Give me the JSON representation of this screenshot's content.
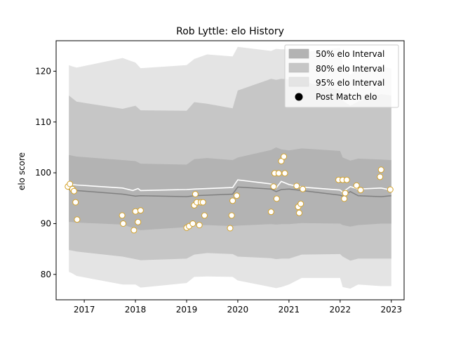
{
  "chart_data": {
    "type": "area",
    "title": "Rob Lyttle: elo History",
    "xlabel": "",
    "ylabel": "elo score",
    "xlim": [
      2016.45,
      2023.25
    ],
    "ylim": [
      75,
      126
    ],
    "x_ticks": [
      2017,
      2018,
      2019,
      2020,
      2021,
      2022,
      2023
    ],
    "y_ticks": [
      80,
      90,
      100,
      110,
      120
    ],
    "grid": false,
    "legend_position": "top-right",
    "legend": {
      "ci50": "50% elo Interval",
      "ci80": "80% elo Interval",
      "ci95": "95% elo Interval",
      "points": "Post Match elo"
    },
    "colors": {
      "ci50": "#b3b3b3",
      "ci80": "#c6c6c6",
      "ci95": "#e4e4e4",
      "mean_line": "#808080",
      "median_line": "#ffffff",
      "point_face": "#ffffff",
      "point_edge": "#d4a22a"
    },
    "bands": {
      "x": [
        2016.7,
        2016.75,
        2016.85,
        2017.75,
        2018.0,
        2018.1,
        2019.0,
        2019.15,
        2019.4,
        2019.9,
        2020.0,
        2020.65,
        2020.75,
        2020.85,
        2021.0,
        2021.25,
        2022.0,
        2022.05,
        2022.2,
        2022.35,
        2022.8,
        2023.0
      ],
      "ci95_lo": [
        80.5,
        80.3,
        79.7,
        78.0,
        78.0,
        77.4,
        78.3,
        79.5,
        79.6,
        79.5,
        78.8,
        77.5,
        77.3,
        77.5,
        78.0,
        79.3,
        79.3,
        77.5,
        77.2,
        78.0,
        77.7,
        77.7
      ],
      "ci80_lo": [
        84.8,
        84.7,
        84.5,
        83.5,
        83.0,
        82.8,
        83.1,
        83.9,
        84.2,
        84.0,
        83.5,
        83.2,
        83.0,
        83.1,
        83.1,
        83.9,
        84.0,
        83.5,
        82.7,
        83.1,
        83.1,
        83.1
      ],
      "ci50_lo": [
        90.3,
        90.3,
        90.2,
        89.8,
        89.0,
        88.7,
        89.3,
        89.7,
        89.7,
        89.5,
        89.6,
        89.9,
        89.8,
        89.9,
        89.9,
        90.1,
        90.0,
        89.7,
        89.4,
        89.7,
        90.0,
        90.0
      ],
      "ci50_hi": [
        103.5,
        103.4,
        103.2,
        102.5,
        102.3,
        101.8,
        101.6,
        102.7,
        102.9,
        102.5,
        103.0,
        104.5,
        105.0,
        104.6,
        104.4,
        104.8,
        104.3,
        103.0,
        102.4,
        102.8,
        102.6,
        102.5
      ],
      "ci80_hi": [
        115.2,
        114.8,
        114.0,
        112.6,
        113.2,
        112.3,
        112.2,
        113.9,
        113.6,
        112.7,
        116.2,
        118.5,
        118.3,
        118.5,
        118.4,
        118.0,
        116.3,
        114.2,
        113.2,
        114.0,
        115.5,
        115.2
      ],
      "ci95_hi": [
        121.2,
        121.0,
        120.7,
        122.6,
        121.7,
        120.6,
        121.2,
        122.4,
        123.3,
        122.9,
        124.8,
        124.0,
        124.4,
        124.3,
        124.3,
        123.7,
        124.6,
        121.4,
        119.3,
        120.5,
        121.0,
        120.5
      ]
    },
    "mean_line": {
      "x": [
        2016.7,
        2016.85,
        2017.75,
        2018.0,
        2018.1,
        2019.0,
        2019.15,
        2019.9,
        2020.0,
        2020.65,
        2020.75,
        2020.85,
        2021.0,
        2021.25,
        2022.0,
        2022.05,
        2022.2,
        2022.35,
        2022.8,
        2023.0
      ],
      "y": [
        96.7,
        96.5,
        95.8,
        95.4,
        95.5,
        95.3,
        95.5,
        95.8,
        97.2,
        96.8,
        96.3,
        96.7,
        96.8,
        96.5,
        95.6,
        95.4,
        96.3,
        95.5,
        95.3,
        95.5
      ]
    },
    "median_line": {
      "x": [
        2016.7,
        2016.85,
        2017.75,
        2017.95,
        2018.05,
        2018.1,
        2019.0,
        2019.15,
        2019.9,
        2020.0,
        2020.65,
        2020.75,
        2020.85,
        2021.0,
        2021.25,
        2022.0,
        2022.05,
        2022.2,
        2022.35,
        2022.8,
        2023.0
      ],
      "y": [
        97.8,
        97.6,
        97.0,
        96.5,
        96.9,
        96.5,
        96.7,
        96.8,
        97.1,
        98.6,
        97.8,
        97.0,
        98.3,
        97.7,
        97.2,
        96.6,
        96.2,
        97.3,
        96.8,
        97.0,
        96.6
      ]
    },
    "points": {
      "x": [
        2016.68,
        2016.72,
        2016.77,
        2016.8,
        2016.83,
        2016.86,
        2017.74,
        2017.76,
        2017.97,
        2018.0,
        2018.05,
        2018.1,
        2019.0,
        2019.05,
        2019.12,
        2019.15,
        2019.17,
        2019.2,
        2019.25,
        2019.28,
        2019.32,
        2019.35,
        2019.85,
        2019.88,
        2019.9,
        2019.98,
        2020.65,
        2020.7,
        2020.72,
        2020.76,
        2020.8,
        2020.85,
        2020.9,
        2020.92,
        2021.15,
        2021.18,
        2021.2,
        2021.23,
        2021.27,
        2021.97,
        2022.05,
        2022.08,
        2022.1,
        2022.13,
        2022.32,
        2022.4,
        2022.78,
        2022.8,
        2022.98
      ],
      "y": [
        97.3,
        97.8,
        96.8,
        96.4,
        94.2,
        90.8,
        91.6,
        90.0,
        88.7,
        92.4,
        90.3,
        92.6,
        89.2,
        89.5,
        90.0,
        93.6,
        95.8,
        94.2,
        89.7,
        94.2,
        94.2,
        91.6,
        89.1,
        91.6,
        94.5,
        95.5,
        92.3,
        97.3,
        99.9,
        94.9,
        99.9,
        102.3,
        103.2,
        99.9,
        97.4,
        93.3,
        92.1,
        93.9,
        96.8,
        98.6,
        98.6,
        94.9,
        96.0,
        98.6,
        97.5,
        96.6,
        99.2,
        100.6,
        96.7
      ]
    }
  }
}
